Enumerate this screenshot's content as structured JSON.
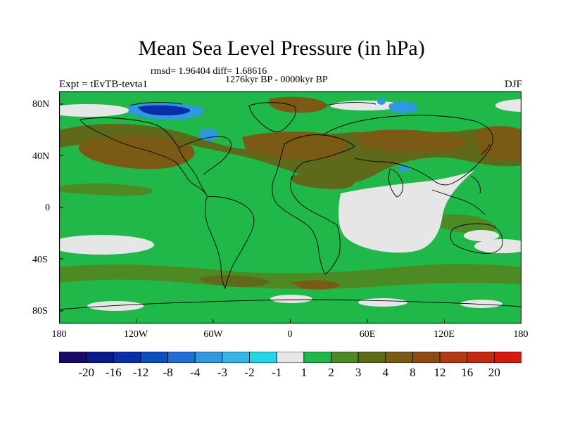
{
  "title": "Mean Sea Level Pressure (in hPa)",
  "stats": "rmsd= 1.96404 diff= 1.68616",
  "period": "1276kyr BP - 0000kyr BP",
  "experiment": "Expt = tEvTB-tevta1",
  "season": "DJF",
  "axes": {
    "y_ticks": [
      "80N",
      "40N",
      "0",
      "40S",
      "80S"
    ],
    "x_ticks": [
      "180",
      "120W",
      "60W",
      "0",
      "60E",
      "120E",
      "180"
    ]
  },
  "colorbar": {
    "labels": [
      "-20",
      "-16",
      "-12",
      "-8",
      "-4",
      "-3",
      "-2",
      "-1",
      "1",
      "2",
      "3",
      "4",
      "8",
      "12",
      "16",
      "20"
    ],
    "colors": [
      "#1a0a6b",
      "#0a1a8c",
      "#0a2ea8",
      "#0b4fbf",
      "#1f6fd6",
      "#2f98e0",
      "#35b6ea",
      "#22d7e8",
      "#e6e6e6",
      "#1fb849",
      "#4e8a24",
      "#5e6a1a",
      "#7a5a14",
      "#8f4a14",
      "#b23a12",
      "#c42a10",
      "#d81a0e"
    ]
  },
  "map_colors": {
    "ocean_green": "#1fb849",
    "light_green": "#4e8a24",
    "olive": "#5e6a1a",
    "brown": "#7a5a14",
    "white": "#e6e6e6",
    "blue": "#2f98e0",
    "dark_blue": "#0a2ea8",
    "coast": "#000000"
  }
}
